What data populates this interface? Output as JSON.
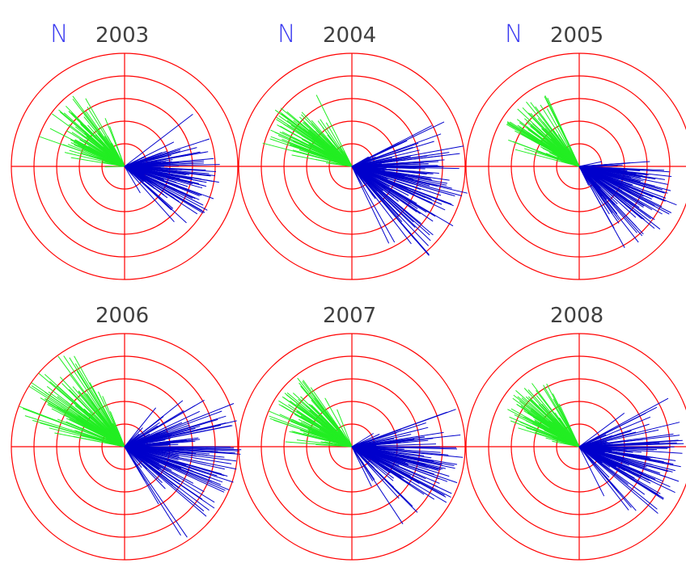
{
  "colors": {
    "rings": "#ff0000",
    "series_a": "#0000cc",
    "series_b": "#22ee22",
    "year_label": "#404040",
    "north_label": "#3a3af0"
  },
  "chart_data": [
    {
      "type": "polar-vector",
      "title": "2003",
      "north_label": "N",
      "rings": 5,
      "seed": 11,
      "blue_center": 10,
      "blue_spread": 55,
      "green_center": 215,
      "green_spread": 40,
      "blue_r": [
        0.15,
        0.85
      ],
      "green_r": [
        0.15,
        0.8
      ],
      "n_blue": 150,
      "n_green": 110
    },
    {
      "type": "polar-vector",
      "title": "2004",
      "north_label": "N",
      "rings": 5,
      "seed": 23,
      "blue_center": 15,
      "blue_spread": 60,
      "green_center": 215,
      "green_spread": 35,
      "blue_r": [
        0.15,
        1.05
      ],
      "green_r": [
        0.15,
        0.85
      ],
      "n_blue": 170,
      "n_green": 120
    },
    {
      "type": "polar-vector",
      "title": "2005",
      "north_label": "N",
      "rings": 5,
      "seed": 37,
      "blue_center": 25,
      "blue_spread": 45,
      "green_center": 220,
      "green_spread": 35,
      "blue_r": [
        0.15,
        0.95
      ],
      "green_r": [
        0.15,
        0.75
      ],
      "n_blue": 150,
      "n_green": 110
    },
    {
      "type": "polar-vector",
      "title": "2006",
      "north_label": "",
      "rings": 5,
      "seed": 41,
      "blue_center": 5,
      "blue_spread": 65,
      "green_center": 220,
      "green_spread": 40,
      "blue_r": [
        0.15,
        1.05
      ],
      "green_r": [
        0.15,
        1.0
      ],
      "n_blue": 170,
      "n_green": 120
    },
    {
      "type": "polar-vector",
      "title": "2007",
      "north_label": "",
      "rings": 5,
      "seed": 53,
      "blue_center": 15,
      "blue_spread": 60,
      "green_center": 215,
      "green_spread": 40,
      "blue_r": [
        0.15,
        1.0
      ],
      "green_r": [
        0.15,
        0.8
      ],
      "n_blue": 165,
      "n_green": 120
    },
    {
      "type": "polar-vector",
      "title": "2008",
      "north_label": "",
      "rings": 5,
      "seed": 67,
      "blue_center": 15,
      "blue_spread": 55,
      "green_center": 220,
      "green_spread": 35,
      "blue_r": [
        0.15,
        0.95
      ],
      "green_r": [
        0.15,
        0.75
      ],
      "n_blue": 150,
      "n_green": 115
    }
  ]
}
